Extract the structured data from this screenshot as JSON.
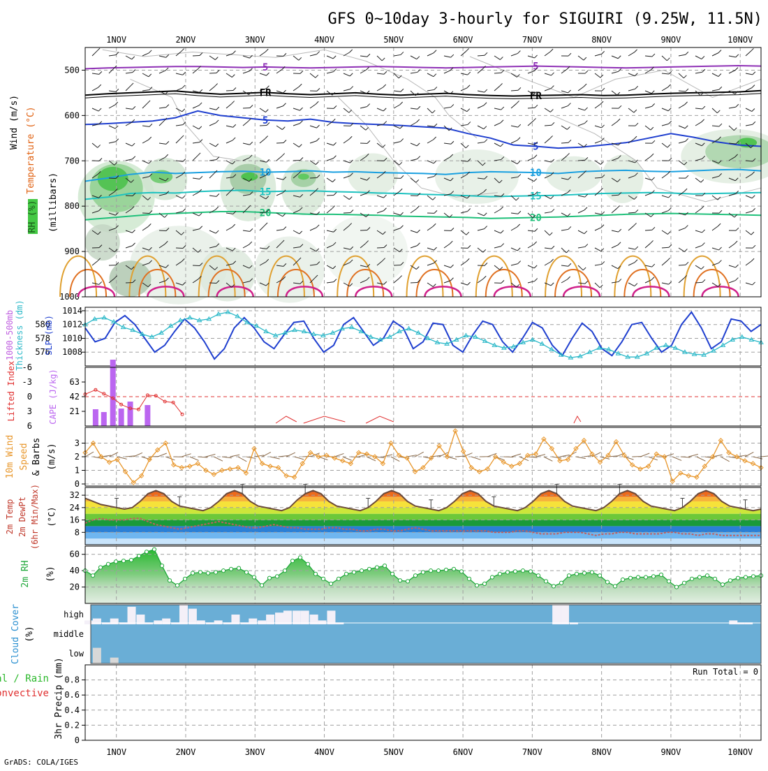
{
  "title": "GFS 0~10day 3-hourly for SIGUIRI (9.25W, 11.5N)",
  "footer": "GrADS: COLA/IGES",
  "run_total_label": "Run Total = 0",
  "colors": {
    "frame": "#000000",
    "grid": "#a0a0a0",
    "slp": "#1f3fcf",
    "thickness": "#2ab8c8",
    "cape": "#bb66f0",
    "lifted_index": "#e03030",
    "wind_speed": "#e8962a",
    "barb": "#8a6a4a",
    "temp_fill": "#f2860f",
    "temp_line": "#6b4a3a",
    "dewpoint": "#c06060",
    "rh": "#1fa83a",
    "cloud_bg": "#6aaed6",
    "cloud_clear": "#f4f0f8"
  },
  "time_axis": {
    "labels": [
      "1NOV",
      "2NOV",
      "3NOV",
      "4NOV",
      "5NOV",
      "6NOV",
      "7NOV",
      "8NOV",
      "9NOV",
      "10NOV"
    ],
    "day_start": 0.55,
    "day_end": 10.3
  },
  "chart_data": [
    {
      "type": "contour",
      "panel": "upper-air",
      "ylabel_wind": "Wind (m/s)",
      "ylabel_temp": "Temperature (°C)",
      "ylabel_rh": "RH (%)",
      "ylabel_units": "(millibars)",
      "yticks": [
        500,
        600,
        700,
        800,
        900,
        1000
      ],
      "ylim": [
        450,
        1000
      ],
      "temperature_contours": [
        {
          "label": "5",
          "values": [
            497,
            495,
            494,
            493,
            492,
            492,
            493,
            494,
            493,
            494,
            495,
            494,
            493,
            492,
            493,
            494,
            495,
            494,
            493,
            492,
            491,
            492,
            493,
            494,
            495,
            494,
            493,
            492,
            491,
            490,
            491
          ],
          "color": "#8e2fb5"
        },
        {
          "label": "FR",
          "values": [
            555,
            552,
            550,
            548,
            546,
            550,
            553,
            551,
            549,
            552,
            554,
            552,
            550,
            553,
            555,
            553,
            551,
            554,
            556,
            557,
            556,
            555,
            554,
            556,
            555,
            553,
            551,
            550,
            549,
            548,
            545
          ],
          "color": "#000000"
        },
        {
          "label": "5",
          "values": [
            620,
            618,
            615,
            612,
            605,
            590,
            600,
            605,
            610,
            612,
            608,
            615,
            618,
            620,
            622,
            625,
            628,
            640,
            650,
            665,
            668,
            672,
            670,
            665,
            660,
            650,
            640,
            648,
            658,
            665,
            668
          ],
          "color": "#1f3fcf"
        },
        {
          "label": "10",
          "values": [
            745,
            738,
            730,
            725,
            728,
            726,
            724,
            723,
            725,
            724,
            722,
            725,
            724,
            726,
            727,
            728,
            730,
            726,
            724,
            725,
            726,
            728,
            724,
            722,
            721,
            723,
            724,
            722,
            720,
            719,
            722
          ],
          "color": "#1aa0e0"
        },
        {
          "label": "15",
          "values": [
            785,
            780,
            772,
            770,
            771,
            768,
            766,
            765,
            768,
            767,
            766,
            768,
            769,
            771,
            772,
            774,
            775,
            777,
            779,
            778,
            777,
            776,
            774,
            772,
            771,
            770,
            771,
            773,
            772,
            771,
            770
          ],
          "color": "#1ec2c0"
        },
        {
          "label": "20",
          "values": [
            830,
            826,
            822,
            818,
            816,
            814,
            812,
            812,
            814,
            816,
            818,
            818,
            819,
            820,
            822,
            823,
            824,
            825,
            827,
            826,
            825,
            824,
            822,
            820,
            818,
            817,
            816,
            817,
            818,
            819,
            820
          ],
          "color": "#1fc07a"
        }
      ]
    },
    {
      "type": "line",
      "panel": "pressure",
      "ylabel_left": "1000-500mb Thickness (dm)",
      "ylabel_right": "SLP (mb)",
      "yticks_left": [
        576,
        578,
        580
      ],
      "yticks_right": [
        1008,
        1010,
        1012,
        1014
      ],
      "ylim_right": [
        1006,
        1014.5
      ],
      "series": [
        {
          "name": "SLP (mb)",
          "values": [
            1011.5,
            1009.5,
            1010.0,
            1012.3,
            1013.3,
            1012.0,
            1010.0,
            1008.0,
            1009.0,
            1011.0,
            1012.8,
            1011.5,
            1009.5,
            1007.0,
            1008.5,
            1011.5,
            1013.0,
            1011.5,
            1009.5,
            1008.5,
            1010.5,
            1012.3,
            1012.5,
            1010.0,
            1008.0,
            1009.0,
            1012.0,
            1013.0,
            1011.0,
            1009.0,
            1010.0,
            1012.5,
            1011.5,
            1008.5,
            1009.5,
            1012.2,
            1012.0,
            1009.0,
            1008.0,
            1010.5,
            1012.5,
            1012.0,
            1009.5,
            1008.0,
            1010.0,
            1012.3,
            1011.5,
            1009.0,
            1007.5,
            1010.0,
            1012.2,
            1011.0,
            1008.5,
            1007.5,
            1009.5,
            1012.0,
            1012.3,
            1010.0,
            1008.0,
            1009.0,
            1012.0,
            1013.8,
            1011.5,
            1008.5,
            1009.5,
            1012.8,
            1012.5,
            1011.0,
            1012.0
          ]
        },
        {
          "name": "1000-500mb Thickness (dm)",
          "values": [
            1012.0,
            1012.8,
            1013.0,
            1012.4,
            1011.6,
            1011.2,
            1010.6,
            1010.2,
            1010.8,
            1011.8,
            1012.6,
            1013.0,
            1012.6,
            1012.8,
            1013.5,
            1013.8,
            1013.2,
            1012.3,
            1011.8,
            1011.0,
            1010.4,
            1010.8,
            1011.2,
            1011.0,
            1010.6,
            1010.4,
            1010.8,
            1011.4,
            1011.6,
            1011.0,
            1010.2,
            1009.8,
            1010.2,
            1011.0,
            1011.4,
            1010.8,
            1010.0,
            1009.4,
            1009.2,
            1009.8,
            1010.4,
            1010.2,
            1009.6,
            1009.0,
            1008.6,
            1008.8,
            1009.4,
            1009.8,
            1009.2,
            1008.4,
            1007.6,
            1007.2,
            1007.4,
            1008.0,
            1008.6,
            1008.4,
            1007.8,
            1007.3,
            1007.3,
            1007.8,
            1008.6,
            1009.0,
            1008.6,
            1008.0,
            1007.7,
            1007.6,
            1008.2,
            1009.0,
            1009.8,
            1010.2,
            1009.8,
            1009.4
          ]
        }
      ]
    },
    {
      "type": "bar",
      "panel": "instability",
      "ylabel_left": "Lifted Index",
      "ylabel_right": "CAPE (J/kg)",
      "yticks_left": [
        "-6",
        "-3",
        "0",
        "3",
        "6"
      ],
      "yticks_right": [
        21,
        42,
        63
      ],
      "cape": {
        "x": [
          0.7,
          0.82,
          0.95,
          1.07,
          1.2,
          1.45
        ],
        "values": [
          24,
          20,
          95,
          25,
          35,
          30
        ]
      },
      "lifted_index": {
        "x": [
          0.55,
          0.7,
          0.82,
          0.95,
          1.07,
          1.2,
          1.32,
          1.45,
          1.57,
          1.7,
          1.82,
          1.95
        ],
        "values": [
          -0.5,
          -1.4,
          -0.6,
          0.3,
          1.6,
          2.4,
          2.6,
          -0.3,
          -0.2,
          1.0,
          1.2,
          3.6
        ]
      }
    },
    {
      "type": "line",
      "panel": "10m wind",
      "ylabel": "10m Wind Speed & Barbs (m/s)",
      "yticks": [
        0,
        1,
        2,
        3
      ],
      "ylim": [
        0,
        4
      ],
      "series": [
        {
          "name": "Speed",
          "values": [
            2.3,
            3.0,
            2.0,
            1.6,
            1.8,
            0.9,
            0.1,
            0.6,
            1.8,
            2.5,
            3.0,
            1.4,
            1.2,
            1.3,
            1.5,
            1.0,
            0.7,
            1.0,
            1.1,
            1.2,
            0.8,
            2.6,
            1.5,
            1.3,
            1.2,
            0.6,
            0.5,
            1.5,
            2.3,
            2.0,
            2.1,
            1.9,
            1.7,
            1.5,
            2.3,
            2.2,
            2.0,
            1.5,
            3.0,
            2.1,
            1.9,
            0.9,
            1.2,
            1.9,
            2.8,
            2.0,
            3.9,
            2.4,
            1.2,
            0.9,
            1.1,
            2.0,
            1.6,
            1.3,
            1.5,
            2.1,
            2.2,
            3.3,
            2.6,
            1.7,
            1.8,
            2.6,
            3.2,
            2.2,
            1.6,
            2.1,
            3.1,
            2.1,
            1.4,
            1.1,
            1.3,
            2.2,
            2.0,
            0.2,
            0.8,
            0.6,
            0.5,
            1.3,
            2.0,
            3.2,
            2.3,
            2.0,
            1.7,
            1.5,
            1.2
          ]
        }
      ]
    },
    {
      "type": "area",
      "panel": "temperature",
      "ylabel": "2m Temp / 2m DewPt (6hr Min/Max) (°C)",
      "yticks": [
        8,
        16,
        24,
        32
      ],
      "ylim": [
        0,
        37
      ],
      "series": [
        {
          "name": "2m Temp",
          "values": [
            30,
            28,
            26,
            25,
            24,
            23,
            24,
            28,
            33,
            35,
            33,
            28,
            25,
            24,
            23,
            22,
            24,
            28,
            33,
            35,
            33,
            28,
            25,
            24,
            23,
            22,
            24,
            29,
            33,
            35,
            33,
            28,
            25,
            24,
            23,
            22,
            24,
            28,
            33,
            35,
            33,
            28,
            25,
            24,
            23,
            22,
            24,
            28,
            33,
            35,
            33,
            28,
            25,
            24,
            23,
            22,
            24,
            28,
            33,
            35,
            33,
            28,
            25,
            24,
            23,
            22,
            24,
            28,
            33,
            35,
            33,
            28,
            25,
            24,
            23,
            22,
            24,
            28,
            33,
            35,
            33,
            28,
            25,
            24,
            23,
            22,
            23
          ]
        },
        {
          "name": "2m DewPt",
          "values": [
            14,
            16,
            17,
            16,
            16,
            16,
            17,
            17,
            15,
            13,
            12,
            11,
            10,
            11,
            12,
            13,
            14,
            15,
            14,
            13,
            12,
            11,
            11,
            12,
            13,
            12,
            11,
            11,
            10,
            10,
            10,
            11,
            11,
            10,
            10,
            9,
            9,
            10,
            10,
            9,
            9,
            10,
            11,
            10,
            9,
            9,
            9,
            9,
            9,
            9,
            9,
            9,
            8,
            8,
            8,
            9,
            9,
            8,
            7,
            7,
            7,
            8,
            8,
            8,
            7,
            6,
            7,
            7,
            8,
            8,
            7,
            7,
            7,
            7,
            8,
            8,
            7,
            7,
            6,
            7,
            7,
            6,
            6,
            6,
            6,
            6,
            6
          ]
        }
      ]
    },
    {
      "type": "area",
      "panel": "relative humidity",
      "ylabel": "2m RH (%)",
      "yticks": [
        20,
        40,
        60
      ],
      "ylim": [
        0,
        70
      ],
      "series": [
        {
          "name": "2m RH",
          "values": [
            40,
            34,
            44,
            48,
            51,
            52,
            53,
            58,
            63,
            66,
            46,
            28,
            22,
            30,
            37,
            38,
            37,
            38,
            40,
            42,
            43,
            38,
            32,
            22,
            31,
            33,
            40,
            52,
            56,
            48,
            36,
            30,
            24,
            30,
            36,
            38,
            40,
            42,
            44,
            46,
            36,
            28,
            27,
            34,
            38,
            40,
            40,
            41,
            42,
            39,
            30,
            22,
            24,
            32,
            36,
            38,
            39,
            40,
            39,
            34,
            27,
            21,
            25,
            34,
            36,
            37,
            38,
            34,
            26,
            21,
            29,
            31,
            32,
            32,
            33,
            35,
            27,
            20,
            25,
            30,
            32,
            34,
            30,
            23,
            28,
            31,
            32,
            33,
            34
          ]
        }
      ]
    },
    {
      "type": "bar",
      "panel": "cloud cover",
      "ylabel": "Cloud Cover (%)",
      "levels": [
        "high",
        "middle",
        "low"
      ],
      "high": {
        "x": [
          0.6,
          0.72,
          0.85,
          0.97,
          1.1,
          1.22,
          1.35,
          1.47,
          1.6,
          1.72,
          1.85,
          1.97,
          2.1,
          2.22,
          2.35,
          2.47,
          2.6,
          2.72,
          2.85,
          2.97,
          3.1,
          3.22,
          3.35,
          3.47,
          3.6,
          3.72,
          3.85,
          3.97,
          4.1,
          4.22,
          7.35,
          7.47,
          7.6,
          9.9,
          10.0,
          10.12
        ],
        "values": [
          0.2,
          0.3,
          0.1,
          0.3,
          0.1,
          0.9,
          0.5,
          0.1,
          0.2,
          0.3,
          0.1,
          1.0,
          0.8,
          0.2,
          0.1,
          0.2,
          0.1,
          0.5,
          0.1,
          0.3,
          0.2,
          0.5,
          0.6,
          0.7,
          0.7,
          0.7,
          0.5,
          0.2,
          0.7,
          0.1,
          1.0,
          1.0,
          0.1,
          0.2,
          0.1,
          0.1
        ]
      },
      "low": {
        "x": [
          0.72,
          0.97
        ],
        "values": [
          0.8,
          0.3
        ]
      }
    },
    {
      "type": "bar",
      "panel": "precipitation",
      "ylabel_left": "Total / Rain",
      "ylabel_left2": "Convective",
      "ylabel": "3hr Precip (mm)",
      "yticks": [
        0,
        0.2,
        0.4,
        0.6,
        0.8
      ],
      "ylim": [
        0,
        1.0
      ],
      "values": []
    }
  ],
  "side_labels": {
    "thickness": "1000-500mb",
    "thickness2": "Thickness (dm)",
    "slp": "SLP (mb)",
    "li": "Lifted Index",
    "cape": "CAPE (J/kg)",
    "wind1": "10m Wind",
    "wind2": "Speed",
    "wind3": "& Barbs",
    "wind_unit": "(m/s)",
    "temp1": "2m Temp",
    "temp2": "2m DewPt",
    "temp3": "(6hr Min/Max)",
    "temp_unit": "(°C)",
    "rh1": "2m RH",
    "rh_unit": "(%)",
    "cloud1": "Cloud Cover",
    "cloud_unit": "(%)",
    "precip1": "tal / Rain",
    "precip2": "Convective",
    "precip3": "3hr Precip (mm)",
    "wind_ax": "Wind (m/s)",
    "temp_ax": "Temperature (°C)",
    "rh_ax": "RH (%)",
    "mb_ax": "(millibars)"
  }
}
